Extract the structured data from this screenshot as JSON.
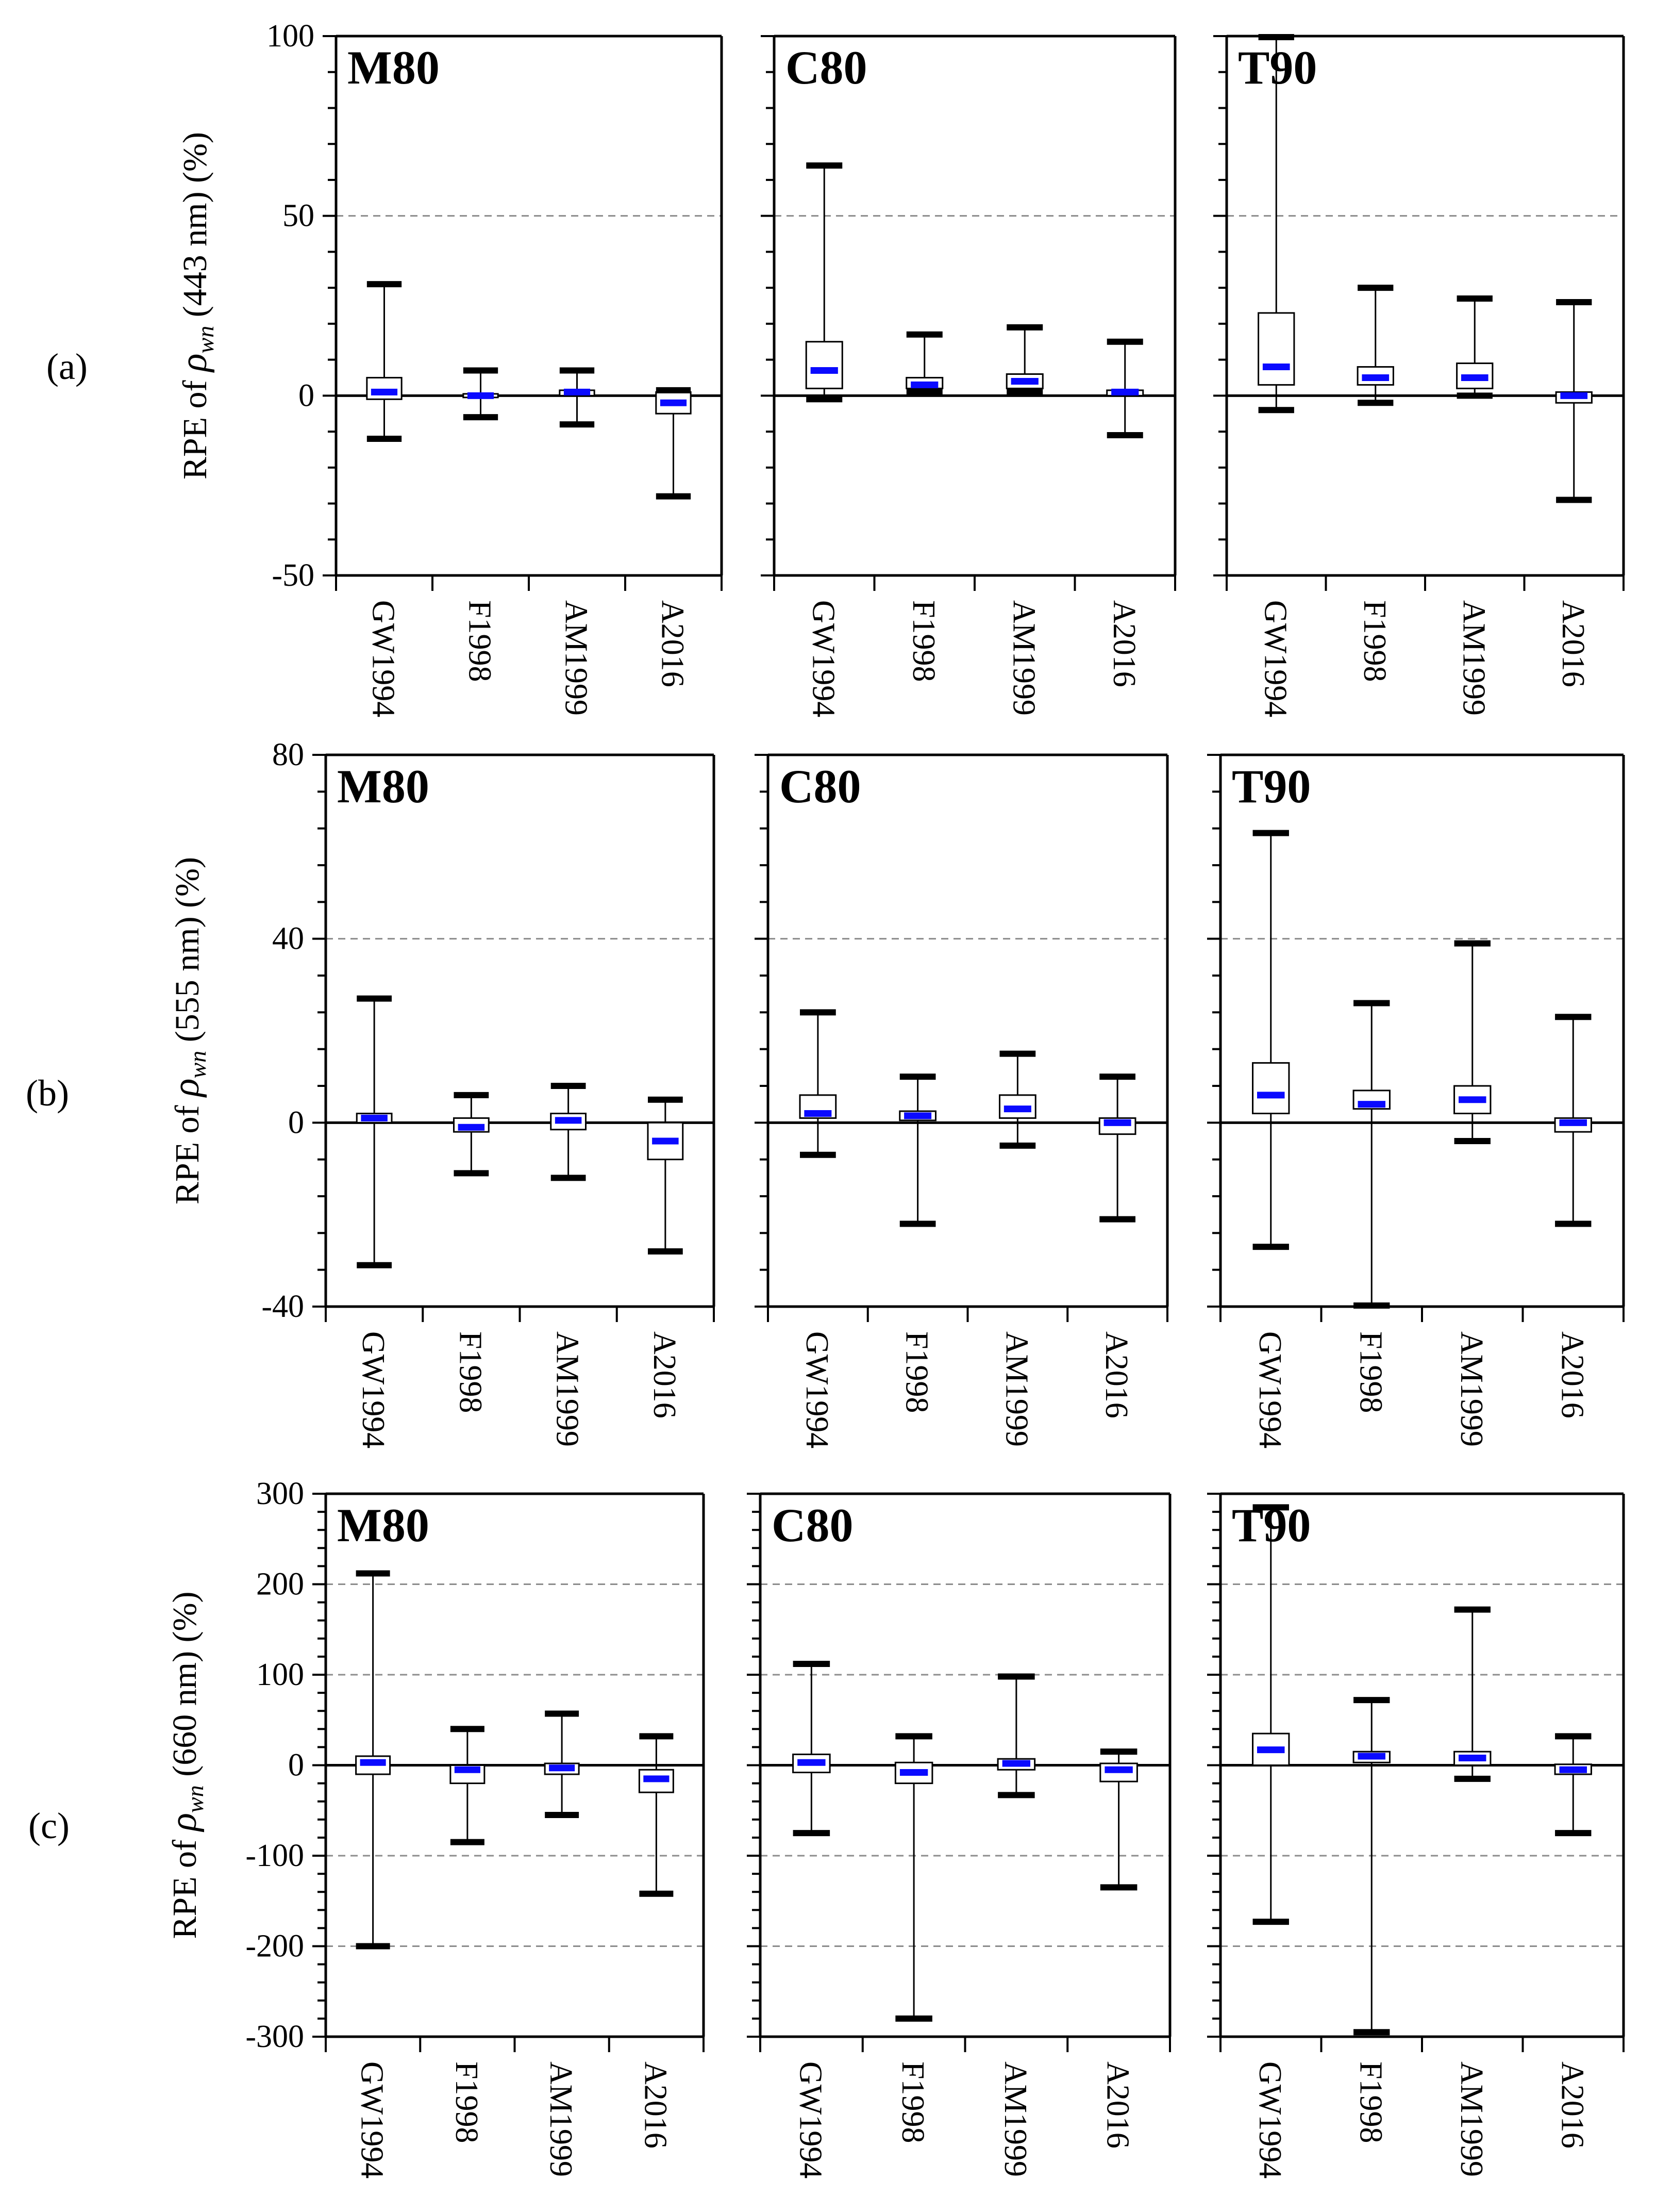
{
  "colors": {
    "median": "#0a0aff",
    "axis": "#000000",
    "grid": "#8c8c8c",
    "box_fill": "#ffffff"
  },
  "chart_data": [
    {
      "type": "boxplot",
      "row_label": "(a)",
      "ylabel": {
        "prefix": "RPE of ",
        "rho": "ρ",
        "sub": "wn",
        "suffix": " (443 nm) (%)"
      },
      "ylim": [
        -50,
        100
      ],
      "yticks": [
        -50,
        0,
        50,
        100
      ],
      "ytick_labels": [
        "-50",
        "0",
        "50",
        "100"
      ],
      "gridlines": [
        50
      ],
      "categories": [
        "GW1994",
        "F1998",
        "AM1999",
        "A2016"
      ],
      "panels": [
        {
          "label": "M80",
          "stats": [
            {
              "min": -12,
              "q1": -1,
              "median": 1,
              "q3": 5,
              "max": 31
            },
            {
              "min": -6,
              "q1": -0.5,
              "median": 0,
              "q3": 0.5,
              "max": 7
            },
            {
              "min": -8,
              "q1": 0,
              "median": 1,
              "q3": 1.5,
              "max": 7
            },
            {
              "min": -28,
              "q1": -5,
              "median": -2,
              "q3": 1,
              "max": 1.5
            }
          ]
        },
        {
          "label": "C80",
          "stats": [
            {
              "min": -1,
              "q1": 2,
              "median": 7,
              "q3": 15,
              "max": 64
            },
            {
              "min": 1,
              "q1": 2,
              "median": 3,
              "q3": 5,
              "max": 17
            },
            {
              "min": 1,
              "q1": 2,
              "median": 4,
              "q3": 6,
              "max": 19
            },
            {
              "min": -11,
              "q1": 0,
              "median": 1,
              "q3": 1.5,
              "max": 15
            }
          ]
        },
        {
          "label": "T90",
          "stats": [
            {
              "min": -4,
              "q1": 3,
              "median": 8,
              "q3": 23,
              "max": 102
            },
            {
              "min": -2,
              "q1": 3,
              "median": 5,
              "q3": 8,
              "max": 30
            },
            {
              "min": 0,
              "q1": 2,
              "median": 5,
              "q3": 9,
              "max": 27
            },
            {
              "min": -29,
              "q1": -2,
              "median": 0,
              "q3": 1,
              "max": 26
            }
          ]
        }
      ]
    },
    {
      "type": "boxplot",
      "row_label": "(b)",
      "ylabel": {
        "prefix": "RPE of ",
        "rho": "ρ",
        "sub": "wn",
        "suffix": " (555 nm) (%)"
      },
      "ylim": [
        -40,
        80
      ],
      "yticks": [
        -40,
        0,
        40,
        80
      ],
      "ytick_labels": [
        "-40",
        "0",
        "40",
        "80"
      ],
      "gridlines": [
        40
      ],
      "categories": [
        "GW1994",
        "F1998",
        "AM1999",
        "A2016"
      ],
      "panels": [
        {
          "label": "M80",
          "stats": [
            {
              "min": -31,
              "q1": 0,
              "median": 1,
              "q3": 2,
              "max": 27
            },
            {
              "min": -11,
              "q1": -2,
              "median": -1,
              "q3": 1,
              "max": 6
            },
            {
              "min": -12,
              "q1": -1.5,
              "median": 0.5,
              "q3": 2,
              "max": 8
            },
            {
              "min": -28,
              "q1": -8,
              "median": -4,
              "q3": 0,
              "max": 5
            }
          ]
        },
        {
          "label": "C80",
          "stats": [
            {
              "min": -7,
              "q1": 1,
              "median": 2,
              "q3": 6,
              "max": 24
            },
            {
              "min": -22,
              "q1": 0.5,
              "median": 1.5,
              "q3": 2.5,
              "max": 10
            },
            {
              "min": -5,
              "q1": 1,
              "median": 3,
              "q3": 6,
              "max": 15
            },
            {
              "min": -21,
              "q1": -2.5,
              "median": 0,
              "q3": 1,
              "max": 10
            }
          ]
        },
        {
          "label": "T90",
          "stats": [
            {
              "min": -27,
              "q1": 2,
              "median": 6,
              "q3": 13,
              "max": 63
            },
            {
              "min": -40,
              "q1": 3,
              "median": 4,
              "q3": 7,
              "max": 26
            },
            {
              "min": -4,
              "q1": 2,
              "median": 5,
              "q3": 8,
              "max": 39
            },
            {
              "min": -22,
              "q1": -2,
              "median": 0,
              "q3": 1,
              "max": 23
            }
          ]
        }
      ]
    },
    {
      "type": "boxplot",
      "row_label": "(c)",
      "ylabel": {
        "prefix": "RPE of ",
        "rho": "ρ",
        "sub": "wn",
        "suffix": " (660 nm) (%)"
      },
      "ylim": [
        -300,
        300
      ],
      "yticks": [
        -300,
        -200,
        -100,
        0,
        100,
        200,
        300
      ],
      "ytick_labels": [
        "-300",
        "-200",
        "-100",
        "0",
        "100",
        "200",
        "300"
      ],
      "gridlines": [
        200,
        100,
        -100,
        -200
      ],
      "categories": [
        "GW1994",
        "F1998",
        "AM1999",
        "A2016"
      ],
      "panels": [
        {
          "label": "M80",
          "stats": [
            {
              "min": -200,
              "q1": -10,
              "median": 3,
              "q3": 10,
              "max": 212
            },
            {
              "min": -85,
              "q1": -20,
              "median": -5,
              "q3": 0,
              "max": 40
            },
            {
              "min": -55,
              "q1": -10,
              "median": -3,
              "q3": 2,
              "max": 57
            },
            {
              "min": -142,
              "q1": -30,
              "median": -15,
              "q3": -5,
              "max": 32
            }
          ]
        },
        {
          "label": "C80",
          "stats": [
            {
              "min": -75,
              "q1": -8,
              "median": 3,
              "q3": 12,
              "max": 112
            },
            {
              "min": -280,
              "q1": -20,
              "median": -8,
              "q3": 3,
              "max": 32
            },
            {
              "min": -33,
              "q1": -5,
              "median": 2,
              "q3": 7,
              "max": 98
            },
            {
              "min": -135,
              "q1": -18,
              "median": -5,
              "q3": 2,
              "max": 15
            }
          ]
        },
        {
          "label": "T90",
          "stats": [
            {
              "min": -173,
              "q1": 0,
              "median": 17,
              "q3": 35,
              "max": 285
            },
            {
              "min": -295,
              "q1": 3,
              "median": 10,
              "q3": 15,
              "max": 72
            },
            {
              "min": -15,
              "q1": 0,
              "median": 8,
              "q3": 15,
              "max": 172
            },
            {
              "min": -75,
              "q1": -10,
              "median": -5,
              "q3": 1,
              "max": 32
            }
          ]
        }
      ]
    }
  ]
}
